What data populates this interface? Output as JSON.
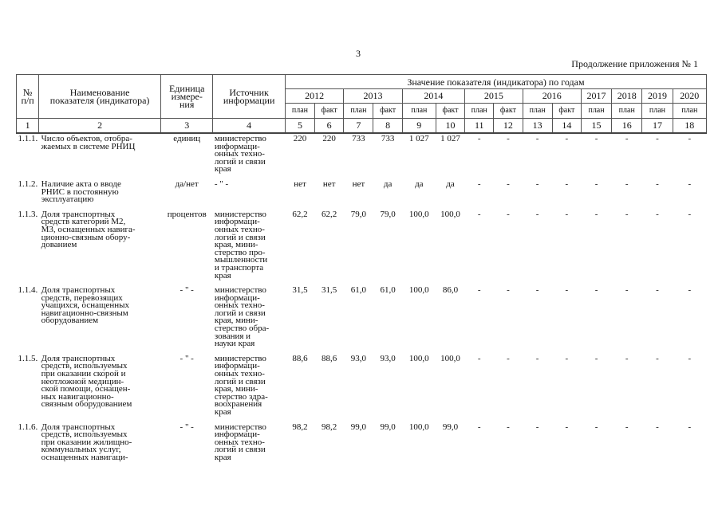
{
  "page_number": "3",
  "continuation": "Продолжение приложения № 1",
  "header": {
    "no": "№\nп/п",
    "name": "Наименование\nпоказателя (индикатора)",
    "unit": "Единица\nизмере-\nния",
    "source": "Источник\nинформации",
    "values_title": "Значение показателя (индикатора) по годам",
    "years": [
      {
        "year": "2012",
        "span": 2
      },
      {
        "year": "2013",
        "span": 2
      },
      {
        "year": "2014",
        "span": 2
      },
      {
        "year": "2015",
        "span": 2
      },
      {
        "year": "2016",
        "span": 2
      },
      {
        "year": "2017",
        "span": 1
      },
      {
        "year": "2018",
        "span": 1
      },
      {
        "year": "2019",
        "span": 1
      },
      {
        "year": "2020",
        "span": 1
      }
    ],
    "subcols": [
      "план",
      "факт",
      "план",
      "факт",
      "план",
      "факт",
      "план",
      "факт",
      "план",
      "факт",
      "план",
      "план",
      "план",
      "план"
    ],
    "col_numbers": [
      "1",
      "2",
      "3",
      "4",
      "5",
      "6",
      "7",
      "8",
      "9",
      "10",
      "11",
      "12",
      "13",
      "14",
      "15",
      "16",
      "17",
      "18"
    ]
  },
  "rows": [
    {
      "no": "1.1.1.",
      "name": "Число объектов, отобра-\nжаемых в системе РНИЦ",
      "unit": "единиц",
      "source": "министерство\nинформаци-\nонных техно-\nлогий и связи\nкрая",
      "values": [
        "220",
        "220",
        "733",
        "733",
        "1 027",
        "1 027",
        "-",
        "-",
        "-",
        "-",
        "-",
        "-",
        "-",
        "-"
      ]
    },
    {
      "no": "1.1.2.",
      "name": "Наличие акта о вводе\nРНИС в постоянную\nэксплуатацию",
      "unit": "да/нет",
      "source": "- \" -",
      "values": [
        "нет",
        "нет",
        "нет",
        "да",
        "да",
        "да",
        "-",
        "-",
        "-",
        "-",
        "-",
        "-",
        "-",
        "-"
      ]
    },
    {
      "no": "1.1.3.",
      "name": "Доля транспортных\nсредств категорий М2,\nМ3, оснащенных навига-\nционно-связным обору-\nдованием",
      "unit": "процентов",
      "source": "министерство\nинформаци-\nонных техно-\nлогий и связи\nкрая, мини-\nстерство про-\nмышленности\nи транспорта\nкрая",
      "values": [
        "62,2",
        "62,2",
        "79,0",
        "79,0",
        "100,0",
        "100,0",
        "-",
        "-",
        "-",
        "-",
        "-",
        "-",
        "-",
        "-"
      ]
    },
    {
      "no": "1.1.4.",
      "name": "Доля транспортных\nсредств, перевозящих\nучащихся, оснащенных\nнавигационно-связным\nоборудованием",
      "unit": "- \" -",
      "source": "министерство\nинформаци-\nонных техно-\nлогий и связи\nкрая, мини-\nстерство обра-\nзования и\nнауки края",
      "values": [
        "31,5",
        "31,5",
        "61,0",
        "61,0",
        "100,0",
        "86,0",
        "-",
        "-",
        "-",
        "-",
        "-",
        "-",
        "-",
        "-"
      ]
    },
    {
      "no": "1.1.5.",
      "name": "Доля транспортных\nсредств, используемых\nпри оказании скорой и\nнеотложной медицин-\nской помощи, оснащен-\nных навигационно-\nсвязным оборудованием",
      "unit": "- \" -",
      "source": "министерство\nинформаци-\nонных техно-\nлогий и связи\nкрая, мини-\nстерство здра-\nвоохранения\nкрая",
      "values": [
        "88,6",
        "88,6",
        "93,0",
        "93,0",
        "100,0",
        "100,0",
        "-",
        "-",
        "-",
        "-",
        "-",
        "-",
        "-",
        "-"
      ]
    },
    {
      "no": "1.1.6.",
      "name": "Доля транспортных\nсредств, используемых\nпри оказании жилищно-\nкоммунальных услуг,\nоснащенных навигаци-",
      "unit": "- \" -",
      "source": "министерство\nинформаци-\nонных техно-\nлогий и связи\nкрая",
      "values": [
        "98,2",
        "98,2",
        "99,0",
        "99,0",
        "100,0",
        "99,0",
        "-",
        "-",
        "-",
        "-",
        "-",
        "-",
        "-",
        "-"
      ]
    }
  ]
}
